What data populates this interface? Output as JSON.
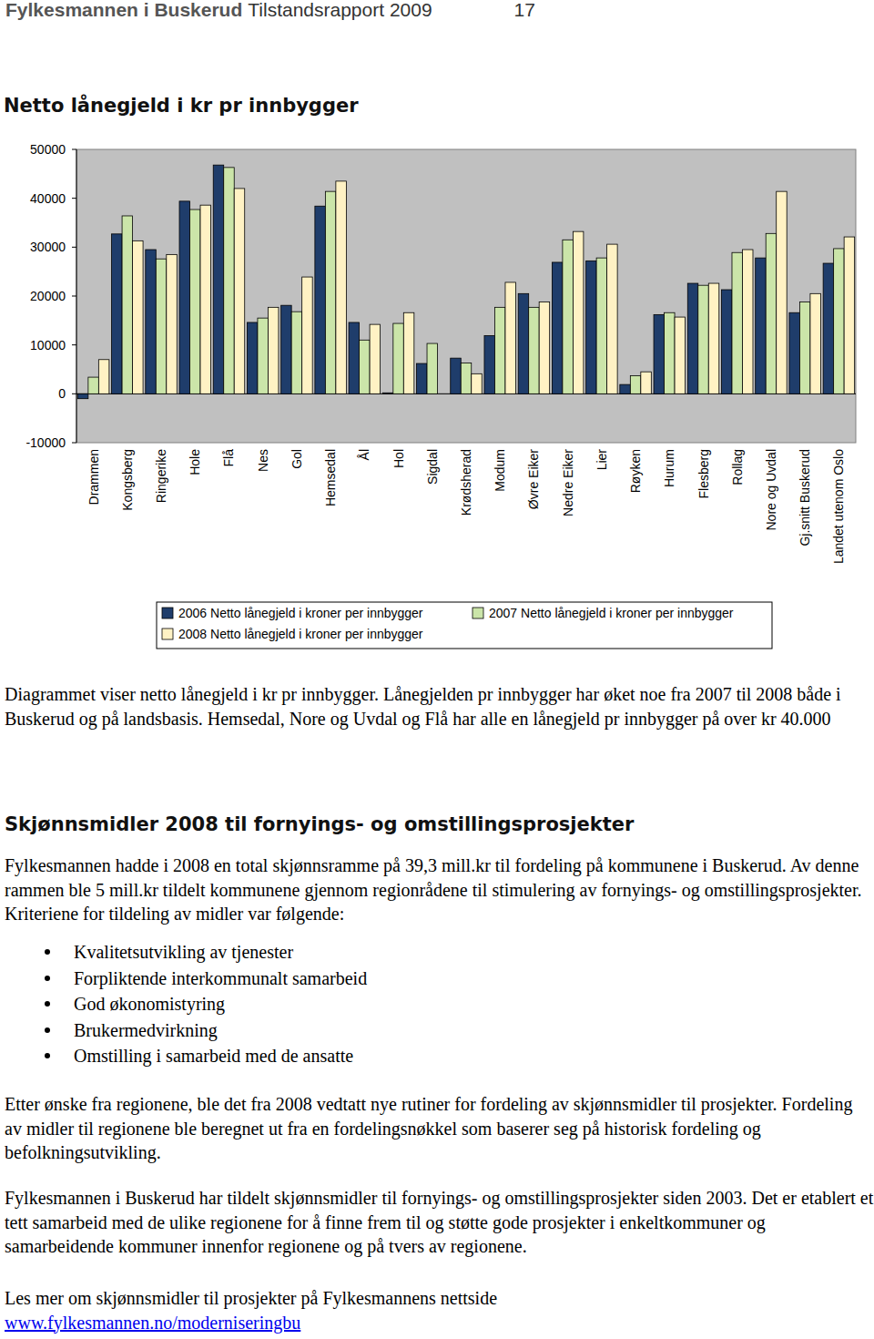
{
  "header": {
    "org": "Fylkesmannen i Buskerud",
    "report": "Tilstandsrapport 2009",
    "page": 17
  },
  "chart_data": {
    "type": "bar",
    "title": "Netto lånegjeld i kr pr innbygger",
    "categories": [
      "Drammen",
      "Kongsberg",
      "Ringerike",
      "Hole",
      "Flå",
      "Nes",
      "Gol",
      "Hemsedal",
      "Ål",
      "Hol",
      "Sigdal",
      "Krødsherad",
      "Modum",
      "Øvre Eiker",
      "Nedre Eiker",
      "Lier",
      "Røyken",
      "Hurum",
      "Flesberg",
      "Rollag",
      "Nore og Uvdal",
      "Gj.snitt Buskerud",
      "Landet utenom Oslo"
    ],
    "series": [
      {
        "name": "2006 Netto lånegjeld i kroner per innbygger",
        "color": "#1f3d6b",
        "values": [
          -1000,
          32700,
          29500,
          39400,
          46800,
          14600,
          18100,
          38400,
          14600,
          200,
          6200,
          7300,
          11900,
          20500,
          26900,
          27200,
          1900,
          16200,
          22600,
          21300,
          27800,
          16600,
          26700
        ]
      },
      {
        "name": "2007 Netto lånegjeld i kroner per innbygger",
        "color": "#cbe5a9",
        "values": [
          3400,
          36400,
          27600,
          37700,
          46300,
          15500,
          16800,
          41400,
          11000,
          14400,
          10300,
          6300,
          17700,
          17700,
          31500,
          27800,
          3700,
          16600,
          22200,
          28900,
          32800,
          18800,
          29700
        ]
      },
      {
        "name": "2008 Netto lånegjeld i kroner per innbygger",
        "color": "#fff2c4",
        "values": [
          7000,
          31300,
          28500,
          38600,
          42000,
          17700,
          23900,
          43500,
          14200,
          16600,
          null,
          4100,
          22800,
          18800,
          33200,
          30600,
          4500,
          15700,
          22600,
          29500,
          41400,
          20500,
          32100
        ]
      }
    ],
    "ylim": [
      -10000,
      50000
    ],
    "yticks": [
      -10000,
      0,
      10000,
      20000,
      30000,
      40000,
      50000
    ],
    "grid": false,
    "legend": "bottom"
  },
  "sections": [
    {
      "paragraphs": [
        "Diagrammet viser netto lånegjeld i kr pr innbygger. Lånegjelden pr innbygger har øket noe fra 2007 til 2008 både i Buskerud og på landsbasis. Hemsedal, Nore og Uvdal og Flå har alle en lånegjeld pr innbygger på over kr 40.000"
      ]
    },
    {
      "heading": "Skjønnsmidler 2008 til fornyings- og omstillingsprosjekter",
      "paragraphs": [
        "Fylkesmannen hadde i 2008 en total skjønnsramme på 39,3 mill.kr til fordeling på kommunene i Buskerud. Av denne rammen ble 5 mill.kr tildelt kommunene gjennom regionrådene til stimulering av fornyings- og omstillingsprosjekter. Kriteriene for tildeling av midler var følgende:"
      ],
      "bullets": [
        "Kvalitetsutvikling av tjenester",
        "Forpliktende interkommunalt samarbeid",
        "God økonomistyring",
        "Brukermedvirkning",
        "Omstilling i samarbeid med de ansatte"
      ],
      "after": [
        "Etter ønske fra regionene, ble det fra 2008 vedtatt nye rutiner for fordeling av skjønnsmidler til prosjekter. Fordeling av midler til regionene ble beregnet ut fra en fordelingsnøkkel som baserer seg på historisk fordeling og befolkningsutvikling.",
        "Fylkesmannen i Buskerud har tildelt skjønnsmidler til fornyings- og omstillingsprosjekter siden 2003. Det er etablert et tett samarbeid med de ulike regionene for å finne frem til og støtte gode prosjekter i enkeltkommuner og samarbeidende kommuner innenfor regionene og på tvers av regionene."
      ],
      "link_text": "Les mer om skjønnsmidler til prosjekter på Fylkesmannens nettside",
      "link": "www.fylkesmannen.no/moderniseringbu"
    }
  ]
}
